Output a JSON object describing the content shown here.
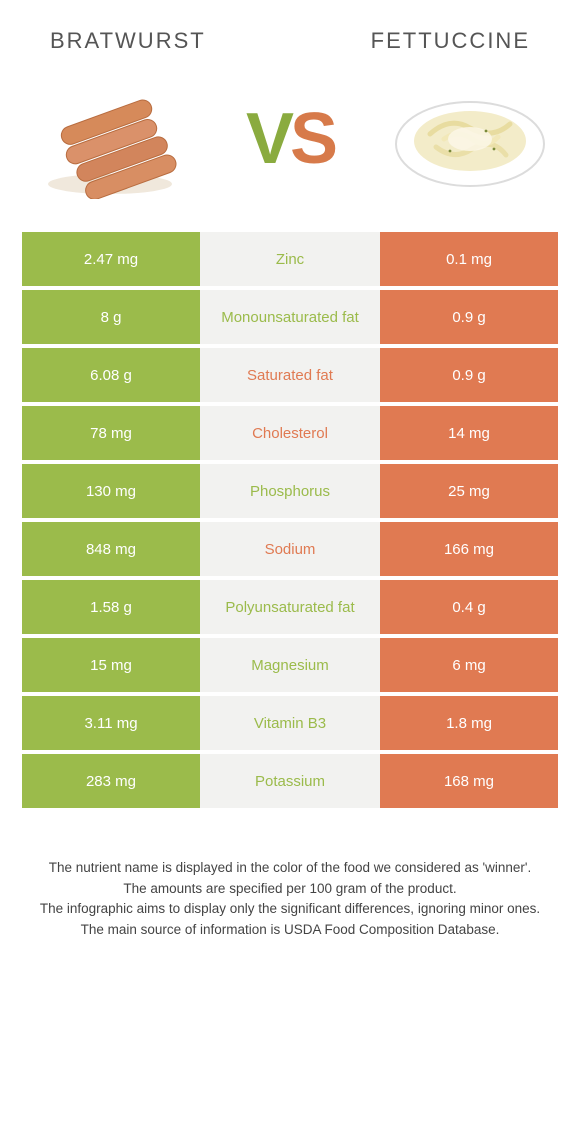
{
  "header": {
    "left_title": "BRATWURST",
    "right_title": "FETTUCCINE"
  },
  "colors": {
    "left_food": "#9bbb4b",
    "right_food": "#e07a52",
    "mid_bg": "#f2f2f0",
    "left_text": "#9bbb4b",
    "right_text": "#e07a52"
  },
  "vs": {
    "v": "V",
    "s": "S"
  },
  "rows": [
    {
      "left": "2.47 mg",
      "mid": "Zinc",
      "right": "0.1 mg",
      "winner": "left"
    },
    {
      "left": "8 g",
      "mid": "Monounsaturated fat",
      "right": "0.9 g",
      "winner": "left"
    },
    {
      "left": "6.08 g",
      "mid": "Saturated fat",
      "right": "0.9 g",
      "winner": "right"
    },
    {
      "left": "78 mg",
      "mid": "Cholesterol",
      "right": "14 mg",
      "winner": "right"
    },
    {
      "left": "130 mg",
      "mid": "Phosphorus",
      "right": "25 mg",
      "winner": "left"
    },
    {
      "left": "848 mg",
      "mid": "Sodium",
      "right": "166 mg",
      "winner": "right"
    },
    {
      "left": "1.58 g",
      "mid": "Polyunsaturated fat",
      "right": "0.4 g",
      "winner": "left"
    },
    {
      "left": "15 mg",
      "mid": "Magnesium",
      "right": "6 mg",
      "winner": "left"
    },
    {
      "left": "3.11 mg",
      "mid": "Vitamin B3",
      "right": "1.8 mg",
      "winner": "left"
    },
    {
      "left": "283 mg",
      "mid": "Potassium",
      "right": "168 mg",
      "winner": "left"
    }
  ],
  "footnotes": [
    "The nutrient name is displayed in the color of the food we considered as 'winner'.",
    "The amounts are specified per 100 gram of the product.",
    "The infographic aims to display only the significant differences, ignoring minor ones.",
    "The main source of information is USDA Food Composition Database."
  ]
}
